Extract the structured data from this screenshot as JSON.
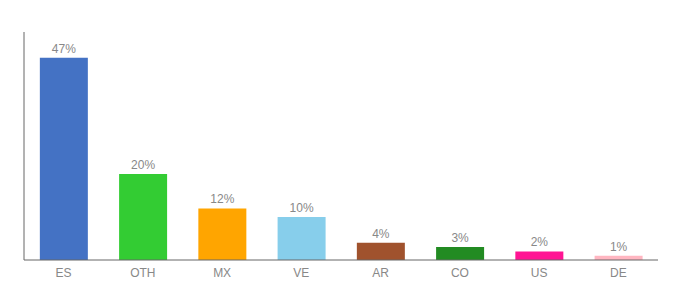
{
  "chart_data": {
    "type": "bar",
    "categories": [
      "ES",
      "OTH",
      "MX",
      "VE",
      "AR",
      "CO",
      "US",
      "DE"
    ],
    "values": [
      47,
      20,
      12,
      10,
      4,
      3,
      2,
      1
    ],
    "value_labels": [
      "47%",
      "20%",
      "12%",
      "10%",
      "4%",
      "3%",
      "2%",
      "1%"
    ],
    "colors": [
      "#4472C4",
      "#33CC33",
      "#FFA500",
      "#87CEEB",
      "#A0522D",
      "#228B22",
      "#FF1493",
      "#FFB6C1"
    ],
    "ylim": [
      0,
      53
    ],
    "data_labels": true,
    "tick_labels": "x",
    "grid": false
  }
}
